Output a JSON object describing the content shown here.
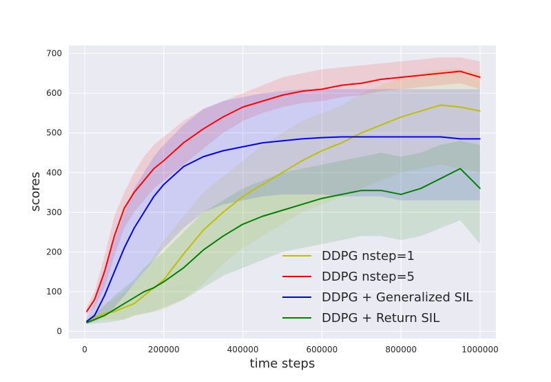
{
  "chart_data": {
    "type": "line",
    "xlabel": "time steps",
    "ylabel": "scores",
    "xlim": [
      -40000,
      1040000
    ],
    "ylim": [
      -18,
      720
    ],
    "x_ticks": [
      0,
      200000,
      400000,
      600000,
      800000,
      1000000
    ],
    "x_tick_labels": [
      "0",
      "200000",
      "400000",
      "600000",
      "800000",
      "1000000"
    ],
    "y_ticks": [
      0,
      100,
      200,
      300,
      400,
      500,
      600,
      700
    ],
    "y_tick_labels": [
      "0",
      "100",
      "200",
      "300",
      "400",
      "500",
      "600",
      "700"
    ],
    "grid": true,
    "legend_position": "lower-right",
    "x": [
      5000,
      25000,
      50000,
      75000,
      100000,
      125000,
      150000,
      175000,
      200000,
      250000,
      300000,
      350000,
      400000,
      450000,
      500000,
      550000,
      600000,
      650000,
      700000,
      750000,
      800000,
      850000,
      900000,
      950000,
      1000000
    ],
    "series": [
      {
        "name": "DDPG nstep=1",
        "color": "#bfbf00",
        "values": [
          25,
          35,
          45,
          50,
          60,
          70,
          90,
          110,
          130,
          195,
          255,
          300,
          340,
          370,
          400,
          430,
          455,
          475,
          500,
          520,
          540,
          555,
          570,
          565,
          555
        ],
        "band": [
          [
            20,
            30
          ],
          [
            25,
            50
          ],
          [
            30,
            70
          ],
          [
            30,
            80
          ],
          [
            30,
            100
          ],
          [
            40,
            120
          ],
          [
            45,
            150
          ],
          [
            50,
            190
          ],
          [
            55,
            230
          ],
          [
            80,
            290
          ],
          [
            120,
            350
          ],
          [
            170,
            390
          ],
          [
            210,
            430
          ],
          [
            240,
            470
          ],
          [
            270,
            500
          ],
          [
            300,
            530
          ],
          [
            320,
            550
          ],
          [
            340,
            570
          ],
          [
            360,
            600
          ],
          [
            380,
            620
          ],
          [
            400,
            640
          ],
          [
            410,
            650
          ],
          [
            420,
            660
          ],
          [
            410,
            660
          ],
          [
            400,
            650
          ]
        ]
      },
      {
        "name": "DDPG nstep=5",
        "color": "#ff0000",
        "values": [
          50,
          80,
          150,
          240,
          310,
          350,
          380,
          410,
          430,
          475,
          510,
          540,
          565,
          580,
          595,
          605,
          610,
          620,
          625,
          635,
          640,
          645,
          650,
          655,
          640
        ],
        "band": [
          [
            40,
            60
          ],
          [
            60,
            100
          ],
          [
            110,
            190
          ],
          [
            190,
            290
          ],
          [
            260,
            350
          ],
          [
            300,
            400
          ],
          [
            330,
            440
          ],
          [
            360,
            470
          ],
          [
            380,
            490
          ],
          [
            420,
            530
          ],
          [
            460,
            560
          ],
          [
            500,
            580
          ],
          [
            530,
            600
          ],
          [
            550,
            620
          ],
          [
            565,
            640
          ],
          [
            575,
            650
          ],
          [
            580,
            660
          ],
          [
            590,
            665
          ],
          [
            595,
            670
          ],
          [
            605,
            675
          ],
          [
            610,
            680
          ],
          [
            615,
            685
          ],
          [
            620,
            690
          ],
          [
            625,
            690
          ],
          [
            610,
            680
          ]
        ]
      },
      {
        "name": "DDPG + Generalized SIL",
        "color": "#0000ff",
        "values": [
          25,
          40,
          90,
          150,
          210,
          260,
          300,
          340,
          370,
          415,
          440,
          455,
          465,
          475,
          480,
          485,
          488,
          490,
          490,
          490,
          490,
          490,
          490,
          485,
          485
        ],
        "band": [
          [
            20,
            35
          ],
          [
            25,
            70
          ],
          [
            40,
            150
          ],
          [
            60,
            230
          ],
          [
            90,
            300
          ],
          [
            120,
            360
          ],
          [
            150,
            400
          ],
          [
            180,
            440
          ],
          [
            210,
            470
          ],
          [
            260,
            520
          ],
          [
            300,
            560
          ],
          [
            320,
            580
          ],
          [
            330,
            590
          ],
          [
            340,
            600
          ],
          [
            345,
            605
          ],
          [
            345,
            610
          ],
          [
            345,
            610
          ],
          [
            340,
            610
          ],
          [
            340,
            610
          ],
          [
            340,
            610
          ],
          [
            330,
            610
          ],
          [
            330,
            610
          ],
          [
            330,
            610
          ],
          [
            330,
            610
          ],
          [
            330,
            610
          ]
        ]
      },
      {
        "name": "DDPG + Return SIL",
        "color": "#008000",
        "values": [
          22,
          30,
          40,
          55,
          70,
          85,
          100,
          110,
          125,
          160,
          205,
          240,
          270,
          290,
          305,
          320,
          335,
          345,
          355,
          355,
          345,
          360,
          385,
          410,
          360
        ],
        "band": [
          [
            18,
            28
          ],
          [
            20,
            45
          ],
          [
            22,
            65
          ],
          [
            25,
            90
          ],
          [
            30,
            110
          ],
          [
            40,
            130
          ],
          [
            45,
            160
          ],
          [
            50,
            180
          ],
          [
            60,
            200
          ],
          [
            80,
            250
          ],
          [
            110,
            300
          ],
          [
            140,
            330
          ],
          [
            160,
            360
          ],
          [
            180,
            380
          ],
          [
            200,
            400
          ],
          [
            210,
            410
          ],
          [
            220,
            420
          ],
          [
            230,
            430
          ],
          [
            240,
            440
          ],
          [
            240,
            450
          ],
          [
            230,
            440
          ],
          [
            240,
            450
          ],
          [
            260,
            470
          ],
          [
            280,
            480
          ],
          [
            220,
            470
          ]
        ]
      }
    ]
  },
  "colors": {
    "plot_background": "#eaeaf2",
    "grid": "#ffffff"
  }
}
